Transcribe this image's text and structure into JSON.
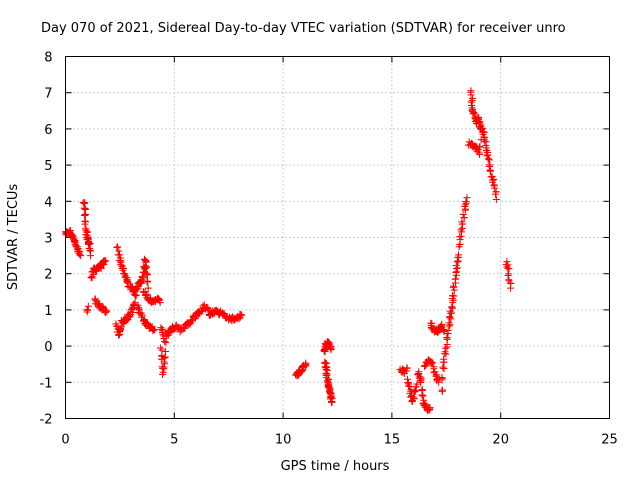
{
  "chart_data": {
    "type": "scatter",
    "title": "Day 070 of 2021, Sidereal Day-to-day VTEC variation (SDTVAR) for receiver unro",
    "xlabel": "GPS time / hours",
    "ylabel": "SDTVAR / TECUs",
    "xlim": [
      0,
      25
    ],
    "ylim": [
      -2,
      8
    ],
    "xticks": [
      0,
      5,
      10,
      15,
      20,
      25
    ],
    "yticks": [
      -2,
      -1,
      0,
      1,
      2,
      3,
      4,
      5,
      6,
      7,
      8
    ],
    "grid": true,
    "marker": "+",
    "color": "#ff0000",
    "anchors": [
      [
        [
          0.0,
          3.1
        ],
        [
          0.2,
          3.15
        ],
        [
          0.35,
          3.0
        ],
        [
          0.5,
          2.8
        ],
        [
          0.6,
          2.6
        ],
        [
          0.7,
          2.5
        ]
      ],
      [
        [
          0.85,
          3.95
        ],
        [
          0.9,
          3.6
        ],
        [
          0.95,
          3.2
        ],
        [
          1.0,
          3.0
        ],
        [
          1.05,
          2.9
        ],
        [
          1.1,
          2.8
        ],
        [
          1.15,
          2.5
        ]
      ],
      [
        [
          1.0,
          1.0
        ],
        [
          1.05,
          1.1
        ]
      ],
      [
        [
          1.2,
          1.9
        ],
        [
          1.3,
          2.1
        ],
        [
          1.45,
          2.15
        ],
        [
          1.6,
          2.2
        ],
        [
          1.75,
          2.3
        ],
        [
          1.85,
          2.35
        ]
      ],
      [
        [
          1.35,
          1.25
        ],
        [
          1.5,
          1.15
        ],
        [
          1.7,
          1.05
        ],
        [
          1.9,
          0.95
        ]
      ],
      [
        [
          2.35,
          0.55
        ],
        [
          2.45,
          0.3
        ],
        [
          2.6,
          0.65
        ],
        [
          2.8,
          0.75
        ],
        [
          3.0,
          0.9
        ],
        [
          3.2,
          1.2
        ]
      ],
      [
        [
          2.4,
          2.75
        ],
        [
          2.5,
          2.4
        ],
        [
          2.6,
          2.2
        ],
        [
          2.75,
          1.9
        ],
        [
          2.9,
          1.7
        ],
        [
          3.05,
          1.6
        ],
        [
          3.25,
          1.4
        ]
      ],
      [
        [
          3.25,
          1.6
        ],
        [
          3.45,
          1.75
        ],
        [
          3.6,
          2.0
        ],
        [
          3.65,
          2.35
        ],
        [
          3.7,
          2.2
        ],
        [
          3.8,
          1.6
        ]
      ],
      [
        [
          3.3,
          1.1
        ],
        [
          3.5,
          0.8
        ],
        [
          3.7,
          0.6
        ],
        [
          3.9,
          0.5
        ],
        [
          4.1,
          0.45
        ]
      ],
      [
        [
          3.6,
          1.5
        ],
        [
          3.8,
          1.3
        ],
        [
          4.0,
          1.25
        ],
        [
          4.2,
          1.3
        ],
        [
          4.35,
          1.2
        ]
      ],
      [
        [
          4.4,
          -0.05
        ],
        [
          4.45,
          -0.4
        ],
        [
          4.5,
          -0.75
        ],
        [
          4.55,
          -0.45
        ],
        [
          4.6,
          -0.15
        ]
      ],
      [
        [
          4.4,
          0.5
        ],
        [
          4.6,
          0.15
        ],
        [
          4.7,
          0.35
        ],
        [
          4.9,
          0.5
        ],
        [
          5.1,
          0.55
        ],
        [
          5.3,
          0.45
        ],
        [
          5.5,
          0.55
        ],
        [
          5.8,
          0.7
        ]
      ],
      [
        [
          5.8,
          0.75
        ],
        [
          6.0,
          0.85
        ],
        [
          6.2,
          0.95
        ],
        [
          6.4,
          1.1
        ],
        [
          6.6,
          0.9
        ],
        [
          6.9,
          0.95
        ],
        [
          7.2,
          0.9
        ],
        [
          7.5,
          0.75
        ],
        [
          7.8,
          0.75
        ],
        [
          8.1,
          0.85
        ]
      ],
      [
        [
          10.6,
          -0.8
        ],
        [
          10.75,
          -0.75
        ],
        [
          10.85,
          -0.65
        ],
        [
          10.95,
          -0.55
        ],
        [
          11.05,
          -0.5
        ]
      ],
      [
        [
          11.9,
          -0.15
        ],
        [
          11.95,
          0.05
        ],
        [
          12.05,
          0.1
        ],
        [
          12.15,
          0.0
        ],
        [
          12.2,
          -0.1
        ]
      ],
      [
        [
          11.95,
          -0.45
        ],
        [
          12.0,
          -0.7
        ],
        [
          12.05,
          -0.95
        ],
        [
          12.1,
          -1.1
        ],
        [
          12.15,
          -1.25
        ],
        [
          12.2,
          -1.45
        ],
        [
          12.25,
          -1.55
        ]
      ],
      [
        [
          15.4,
          -0.65
        ],
        [
          15.6,
          -0.7
        ],
        [
          15.7,
          -0.6
        ]
      ],
      [
        [
          15.75,
          -0.95
        ],
        [
          15.85,
          -1.25
        ],
        [
          15.95,
          -1.5
        ],
        [
          16.05,
          -1.3
        ],
        [
          16.15,
          -1.05
        ]
      ],
      [
        [
          16.2,
          -0.75
        ],
        [
          16.35,
          -1.0
        ],
        [
          16.45,
          -1.55
        ],
        [
          16.55,
          -1.65
        ],
        [
          16.65,
          -1.75
        ],
        [
          16.75,
          -1.7
        ]
      ],
      [
        [
          16.5,
          -0.5
        ],
        [
          16.7,
          -0.4
        ],
        [
          16.85,
          -0.5
        ],
        [
          17.0,
          -0.8
        ],
        [
          17.15,
          -1.0
        ]
      ],
      [
        [
          16.8,
          0.6
        ],
        [
          16.9,
          0.45
        ],
        [
          17.1,
          0.4
        ],
        [
          17.3,
          0.55
        ],
        [
          17.4,
          0.4
        ]
      ],
      [
        [
          17.3,
          -1.2
        ],
        [
          17.35,
          -0.6
        ],
        [
          17.45,
          -0.2
        ],
        [
          17.55,
          0.2
        ],
        [
          17.65,
          0.6
        ],
        [
          17.75,
          1.1
        ],
        [
          17.85,
          1.6
        ],
        [
          17.95,
          2.0
        ],
        [
          18.05,
          2.5
        ],
        [
          18.15,
          3.0
        ],
        [
          18.25,
          3.4
        ],
        [
          18.35,
          3.8
        ],
        [
          18.45,
          4.1
        ]
      ],
      [
        [
          18.65,
          7.0
        ],
        [
          18.7,
          6.6
        ],
        [
          18.75,
          6.4
        ],
        [
          18.85,
          6.2
        ],
        [
          18.95,
          6.3
        ],
        [
          19.05,
          6.1
        ],
        [
          19.2,
          5.9
        ],
        [
          19.3,
          5.6
        ],
        [
          19.4,
          5.3
        ],
        [
          19.5,
          5.0
        ],
        [
          19.6,
          4.7
        ],
        [
          19.7,
          4.4
        ],
        [
          19.8,
          4.05
        ]
      ],
      [
        [
          18.55,
          5.6
        ],
        [
          18.75,
          5.5
        ],
        [
          18.9,
          5.5
        ],
        [
          19.0,
          5.3
        ],
        [
          19.1,
          5.7
        ]
      ],
      [
        [
          20.25,
          2.3
        ],
        [
          20.35,
          2.1
        ],
        [
          20.4,
          1.8
        ],
        [
          20.45,
          1.6
        ]
      ]
    ],
    "repeat": [
      3,
      3,
      2,
      3,
      2,
      3,
      3,
      3,
      2,
      2,
      2,
      2,
      2,
      3,
      3,
      4,
      2,
      3,
      3,
      2,
      3,
      3,
      3,
      2,
      2
    ],
    "jitter": 0.06
  }
}
